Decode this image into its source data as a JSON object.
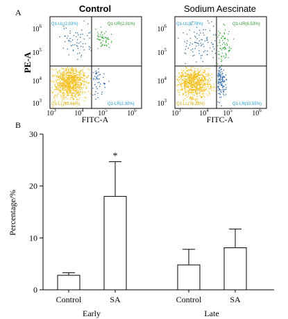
{
  "figure": {
    "panel_a_label": "A",
    "panel_b_label": "B"
  },
  "scatter_panels": [
    {
      "title": "Control",
      "ylabel": "PE-A",
      "xlabel": "FITC-A",
      "x_ticks": [
        "10",
        "10",
        "10",
        "10"
      ],
      "x_tick_exps": [
        "3",
        "4",
        "5",
        "6"
      ],
      "y_ticks": [
        "10",
        "10",
        "10",
        "10"
      ],
      "y_tick_exps": [
        "3",
        "4",
        "5",
        "6"
      ],
      "quadrants": {
        "UL": "Q1-UL(2.03%)",
        "UR": "Q1-UR(2.01%)",
        "LL": "Q1-LL(93.66%)",
        "LR": "Q1-LR(2.30%)"
      }
    },
    {
      "title": "Sodium Aescinate",
      "ylabel": "",
      "xlabel": "FITC-A",
      "x_ticks": [
        "10",
        "10",
        "10",
        "10"
      ],
      "x_tick_exps": [
        "3",
        "4",
        "5",
        "6"
      ],
      "y_ticks": [
        "10",
        "10",
        "10",
        "10"
      ],
      "y_tick_exps": [
        "3",
        "4",
        "5",
        "6"
      ],
      "quadrants": {
        "UL": "Q1-UL(6.78%)",
        "UR": "Q1-UR(6.53%)",
        "LL": "Q1-LL(76.13%)",
        "LR": "Q1-LR(10.55%)"
      }
    }
  ],
  "colors": {
    "ll_yellow": "#f4c020",
    "ul_blue": "#2a6a9a",
    "ur_green": "#3aa83a",
    "lr_blue": "#1f5fa8",
    "label_blue": "#1a9ad0",
    "label_green": "#2a9a2a",
    "label_yellow": "#d4a800",
    "axis": "#000000"
  },
  "chart_data": {
    "type": "bar",
    "ylabel": "Percentage/%",
    "ylim": [
      0,
      30
    ],
    "y_ticks": [
      0,
      10,
      20,
      30
    ],
    "groups": [
      {
        "name": "Early",
        "categories": [
          "Control",
          "SA"
        ],
        "values": [
          2.8,
          18.0
        ],
        "errors": [
          0.5,
          6.7
        ],
        "annotations": [
          "",
          "*"
        ]
      },
      {
        "name": "Late",
        "categories": [
          "Control",
          "SA"
        ],
        "values": [
          4.8,
          8.1
        ],
        "errors": [
          3.0,
          3.6
        ],
        "annotations": [
          "",
          ""
        ]
      }
    ]
  }
}
